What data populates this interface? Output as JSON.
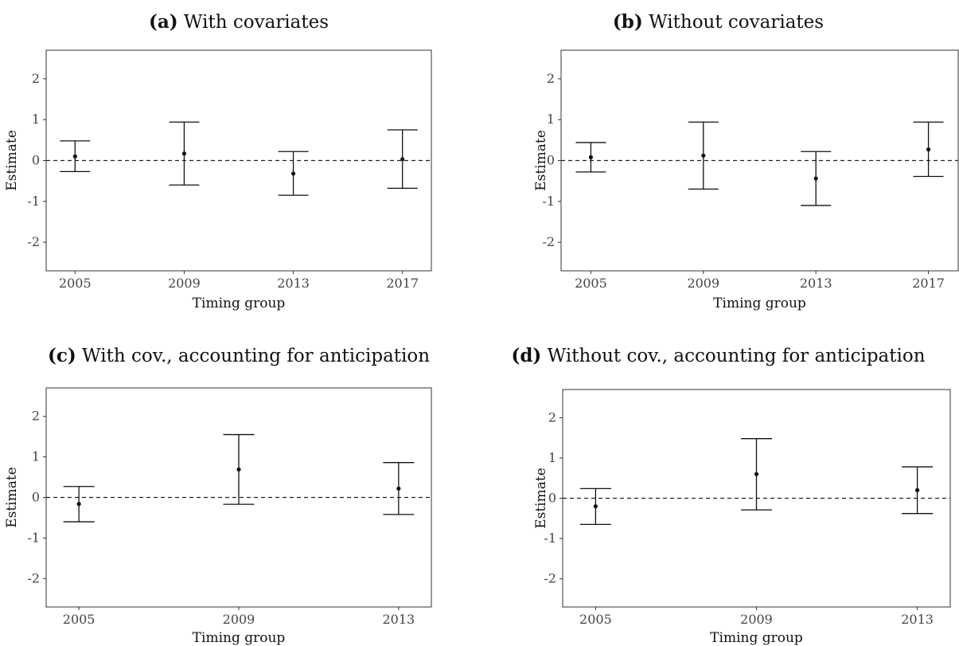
{
  "chart_data": [
    {
      "type": "scatter",
      "panel_tag": "(a)",
      "title": "With covariates",
      "xlabel": "Timing group",
      "ylabel": "Estimate",
      "ylim": [
        -2.7,
        2.7
      ],
      "yticks": [
        2,
        1,
        0,
        -1,
        -2
      ],
      "ytick_labels": [
        "2",
        "1",
        "0",
        "-1",
        "-2"
      ],
      "categories": [
        "2005",
        "2009",
        "2013",
        "2017"
      ],
      "estimates": [
        0.1,
        0.17,
        -0.32,
        0.03
      ],
      "ci_lower": [
        -0.27,
        -0.6,
        -0.85,
        -0.68
      ],
      "ci_upper": [
        0.48,
        0.94,
        0.22,
        0.75
      ],
      "reference_line": 0
    },
    {
      "type": "scatter",
      "panel_tag": "(b)",
      "title": "Without covariates",
      "xlabel": "Timing group",
      "ylabel": "Estimate",
      "ylim": [
        -2.7,
        2.7
      ],
      "yticks": [
        2,
        1,
        0,
        -1,
        -2
      ],
      "ytick_labels": [
        "2",
        "1",
        "0",
        "-1",
        "-2"
      ],
      "categories": [
        "2005",
        "2009",
        "2013",
        "2017"
      ],
      "estimates": [
        0.08,
        0.12,
        -0.44,
        0.27
      ],
      "ci_lower": [
        -0.28,
        -0.7,
        -1.1,
        -0.39
      ],
      "ci_upper": [
        0.44,
        0.94,
        0.22,
        0.94
      ],
      "reference_line": 0
    },
    {
      "type": "scatter",
      "panel_tag": "(c)",
      "title": "With cov., accounting for anticipation",
      "xlabel": "Timing group",
      "ylabel": "Estimate",
      "ylim": [
        -2.7,
        2.7
      ],
      "yticks": [
        2,
        1,
        0,
        -1,
        -2
      ],
      "ytick_labels": [
        "2",
        "1",
        "0",
        "-1",
        "-2"
      ],
      "categories": [
        "2005",
        "2009",
        "2013"
      ],
      "estimates": [
        -0.16,
        0.69,
        0.22
      ],
      "ci_lower": [
        -0.6,
        -0.17,
        -0.42
      ],
      "ci_upper": [
        0.27,
        1.55,
        0.86
      ],
      "reference_line": 0
    },
    {
      "type": "scatter",
      "panel_tag": "(d)",
      "title": "Without cov., accounting for anticipation",
      "xlabel": "Timing group",
      "ylabel": "Estimate",
      "ylim": [
        -2.7,
        2.7
      ],
      "yticks": [
        2,
        1,
        0,
        -1,
        -2
      ],
      "ytick_labels": [
        "2",
        "1",
        "0",
        "-1",
        "-2"
      ],
      "categories": [
        "2005",
        "2009",
        "2013"
      ],
      "estimates": [
        -0.2,
        0.6,
        0.2
      ],
      "ci_lower": [
        -0.65,
        -0.29,
        -0.38
      ],
      "ci_upper": [
        0.24,
        1.48,
        0.78
      ],
      "reference_line": 0
    }
  ]
}
